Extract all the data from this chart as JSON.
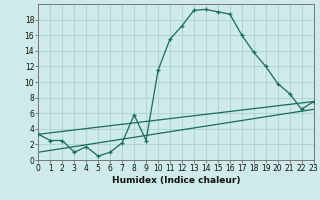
{
  "xlabel": "Humidex (Indice chaleur)",
  "bg_color": "#ceeaea",
  "grid_color": "#afd4d4",
  "line_color": "#1a6b5a",
  "x_ticks": [
    0,
    1,
    2,
    3,
    4,
    5,
    6,
    7,
    8,
    9,
    10,
    11,
    12,
    13,
    14,
    15,
    16,
    17,
    18,
    19,
    20,
    21,
    22,
    23
  ],
  "y_ticks": [
    0,
    2,
    4,
    6,
    8,
    10,
    12,
    14,
    16,
    18
  ],
  "xlim": [
    0,
    23
  ],
  "ylim": [
    0,
    20
  ],
  "curve_x": [
    0,
    1,
    2,
    3,
    4,
    5,
    6,
    7,
    8,
    9,
    10,
    11,
    12,
    13,
    14,
    15,
    16,
    17,
    18,
    19,
    20,
    21,
    22,
    23
  ],
  "curve_y": [
    3.3,
    2.5,
    2.5,
    1.0,
    1.7,
    0.5,
    1.0,
    2.2,
    5.8,
    2.5,
    11.5,
    15.5,
    17.2,
    19.2,
    19.3,
    19.0,
    18.7,
    16.0,
    13.8,
    12.0,
    9.8,
    8.5,
    6.5,
    7.5
  ],
  "line1_x": [
    0,
    23
  ],
  "line1_y": [
    3.3,
    7.5
  ],
  "line2_x": [
    0,
    23
  ],
  "line2_y": [
    1.0,
    6.5
  ],
  "xlabel_fontsize": 6.5,
  "tick_fontsize": 5.5
}
